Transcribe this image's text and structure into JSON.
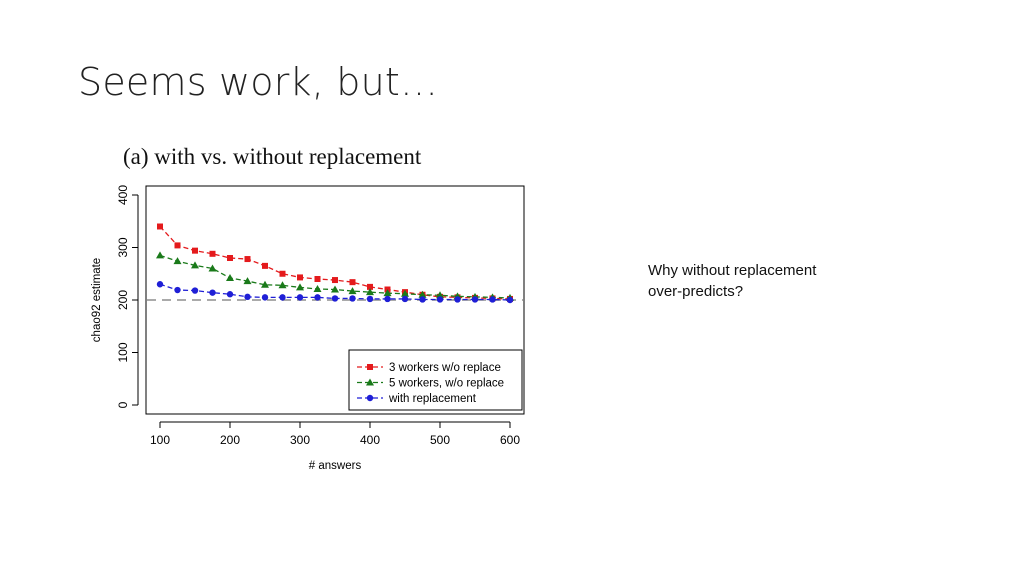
{
  "slide": {
    "title": "Seems work, but…",
    "note_line1": "Why without replacement",
    "note_line2": "over-predicts?"
  },
  "chart_data": {
    "type": "line",
    "title": "(a) with vs. without replacement",
    "xlabel": "# answers",
    "ylabel": "chao92 estimate",
    "xlim": [
      100,
      600
    ],
    "ylim": [
      0,
      400
    ],
    "xticks": [
      100,
      200,
      300,
      400,
      500,
      600
    ],
    "yticks": [
      0,
      100,
      200,
      300,
      400
    ],
    "reference_line": {
      "y": 200,
      "style": "dashed",
      "color": "#aaaaaa"
    },
    "x": [
      100,
      125,
      150,
      175,
      200,
      225,
      250,
      275,
      300,
      325,
      350,
      375,
      400,
      425,
      450,
      475,
      500,
      525,
      550,
      575,
      600
    ],
    "series": [
      {
        "name": "3 workers w/o replace",
        "color": "#e41a1c",
        "marker": "square",
        "values": [
          340,
          304,
          294,
          288,
          280,
          278,
          265,
          250,
          243,
          240,
          238,
          234,
          225,
          220,
          215,
          210,
          206,
          205,
          204,
          203,
          202
        ]
      },
      {
        "name": "5 workers, w/o replace",
        "color": "#1a7a1a",
        "marker": "triangle",
        "values": [
          285,
          274,
          266,
          260,
          242,
          236,
          229,
          228,
          224,
          221,
          220,
          217,
          215,
          213,
          212,
          210,
          209,
          207,
          206,
          205,
          204
        ]
      },
      {
        "name": "with replacement",
        "color": "#1f1fd6",
        "marker": "circle",
        "values": [
          230,
          219,
          218,
          214,
          211,
          206,
          205,
          205,
          205,
          205,
          203,
          203,
          202,
          202,
          202,
          201,
          201,
          201,
          201,
          201,
          200
        ]
      }
    ],
    "legend_position": "bottom-right",
    "grid": false
  }
}
